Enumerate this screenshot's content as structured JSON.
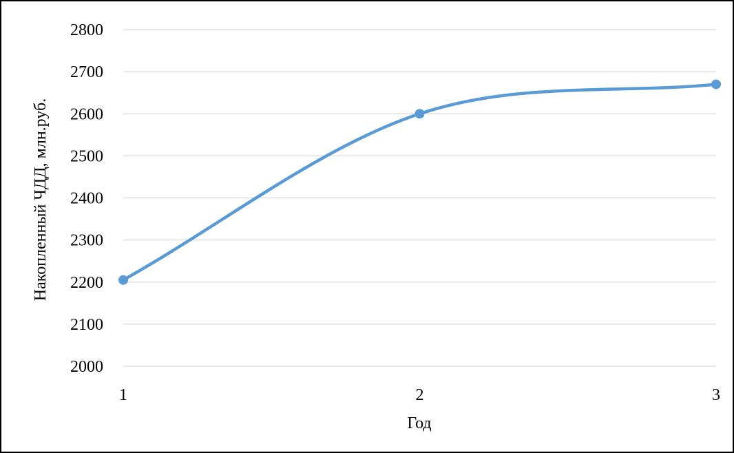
{
  "chart_data": {
    "type": "line",
    "title": "",
    "xlabel": "Год",
    "ylabel": "Накопленный ЧДД, млн.руб.",
    "categories": [
      "1",
      "2",
      "3"
    ],
    "x": [
      1,
      2,
      3
    ],
    "series": [
      {
        "values": [
          2205,
          2600,
          2670
        ],
        "color": "#5B9BD5",
        "smooth": true,
        "markers": true
      }
    ],
    "ylim": [
      2000,
      2800
    ],
    "yticks": [
      "2000",
      "2100",
      "2200",
      "2300",
      "2400",
      "2500",
      "2600",
      "2700",
      "2800"
    ],
    "grid": true,
    "legend": "none"
  }
}
